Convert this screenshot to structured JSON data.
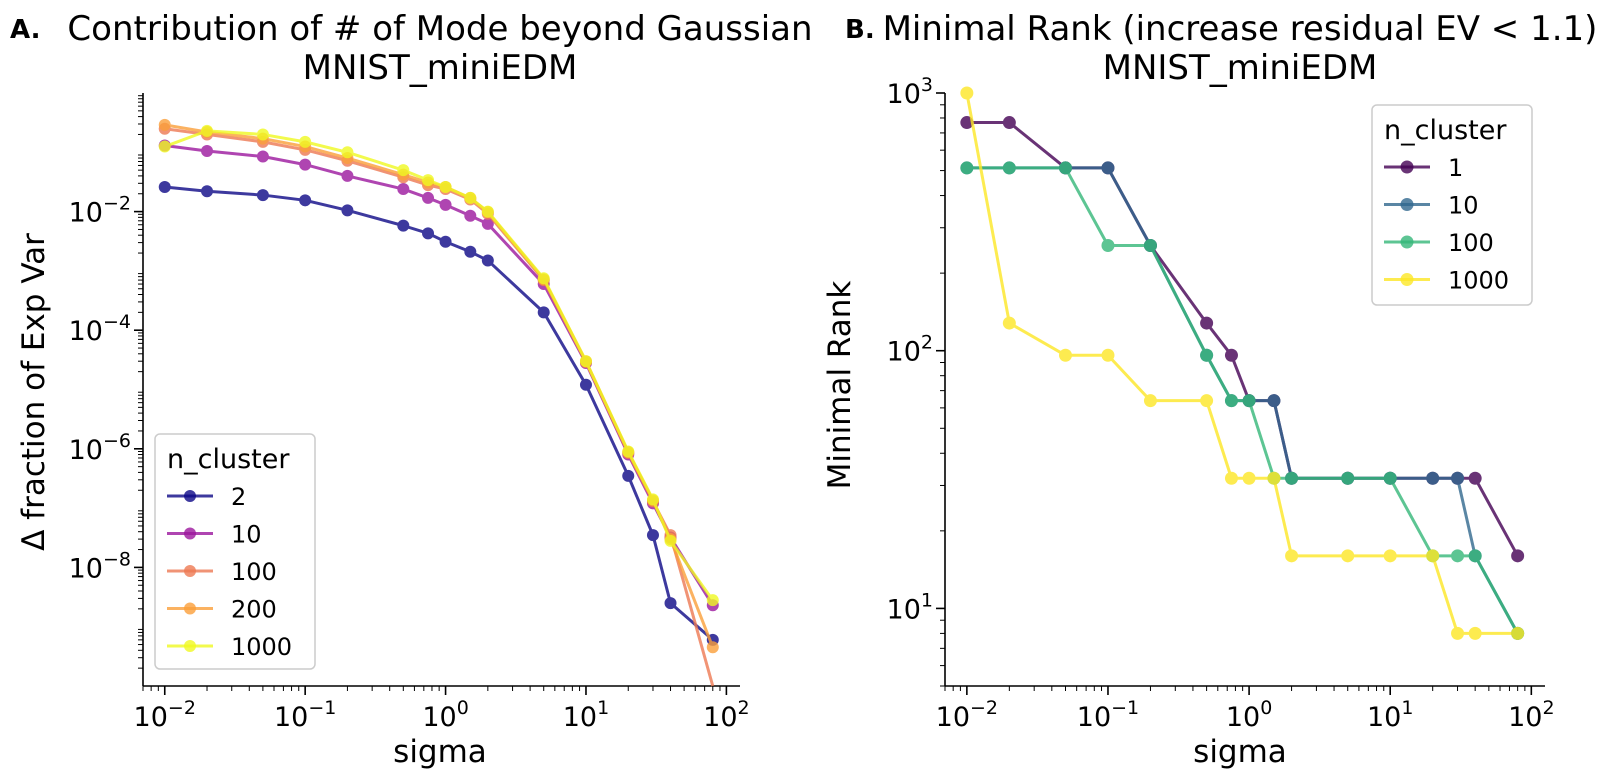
{
  "chart_data": [
    {
      "type": "line",
      "panel_label": "A.",
      "title": "Contribution of # of Mode beyond Gaussian",
      "subtitle": "MNIST_miniEDM",
      "xlabel": "sigma",
      "ylabel": "Δ fraction of Exp Var",
      "xscale": "log",
      "yscale": "log",
      "xlim": [
        0.007,
        125
      ],
      "ylim": [
        1e-10,
        1
      ],
      "xticks": [
        {
          "value": 0.01,
          "base": "10",
          "exp": "−2"
        },
        {
          "value": 0.1,
          "base": "10",
          "exp": "−1"
        },
        {
          "value": 1,
          "base": "10",
          "exp": "0"
        },
        {
          "value": 10,
          "base": "10",
          "exp": "1"
        },
        {
          "value": 100,
          "base": "10",
          "exp": "2"
        }
      ],
      "yticks": [
        {
          "value": 0.01,
          "base": "10",
          "exp": "−2"
        },
        {
          "value": 0.0001,
          "base": "10",
          "exp": "−4"
        },
        {
          "value": 1e-06,
          "base": "10",
          "exp": "−6"
        },
        {
          "value": 1e-08,
          "base": "10",
          "exp": "−8"
        }
      ],
      "legend_title": "n_cluster",
      "legend_position": "lower-left",
      "x": [
        0.01,
        0.02,
        0.05,
        0.1,
        0.2,
        0.5,
        0.75,
        1,
        1.5,
        2,
        5,
        10,
        20,
        30,
        40,
        80
      ],
      "series": [
        {
          "name": "2",
          "color": "#0d0887",
          "values": [
            0.026,
            0.022,
            0.019,
            0.0155,
            0.0105,
            0.0058,
            0.0043,
            0.0031,
            0.0021,
            0.0015,
            0.0002,
            1.2e-05,
            3.5e-07,
            3.5e-08,
            2.5e-09,
            6e-10
          ]
        },
        {
          "name": "10",
          "color": "#9c179e",
          "values": [
            0.13,
            0.105,
            0.085,
            0.062,
            0.04,
            0.024,
            0.017,
            0.013,
            0.0085,
            0.0062,
            0.0006,
            2.8e-05,
            8e-07,
            1.2e-07,
            3.2e-08,
            2.3e-09
          ]
        },
        {
          "name": "100",
          "color": "#ed7953",
          "values": [
            0.25,
            0.2,
            0.15,
            0.11,
            0.072,
            0.038,
            0.028,
            0.024,
            0.016,
            0.0092,
            0.0007,
            2.9e-05,
            8.5e-07,
            1.3e-07,
            3.5e-08,
            1e-10
          ]
        },
        {
          "name": "200",
          "color": "#fb9f3a",
          "values": [
            0.29,
            0.22,
            0.17,
            0.125,
            0.08,
            0.042,
            0.031,
            0.026,
            0.017,
            0.0098,
            0.00072,
            3e-05,
            8.8e-07,
            1.35e-07,
            3e-08,
            4.5e-10
          ]
        },
        {
          "name": "1000",
          "color": "#f0f921",
          "values": [
            0.125,
            0.23,
            0.2,
            0.15,
            0.1,
            0.05,
            0.034,
            0.026,
            0.017,
            0.01,
            0.00075,
            3e-05,
            9e-07,
            1.4e-07,
            2.8e-08,
            2.8e-09
          ]
        }
      ]
    },
    {
      "type": "line",
      "panel_label": "B.",
      "title": "Minimal Rank (increase residual EV < 1.1)",
      "subtitle": "MNIST_miniEDM",
      "xlabel": "sigma",
      "ylabel": "Minimal Rank",
      "xscale": "log",
      "yscale": "log",
      "xlim": [
        0.007,
        125
      ],
      "ylim": [
        5,
        1000
      ],
      "xticks": [
        {
          "value": 0.01,
          "base": "10",
          "exp": "−2"
        },
        {
          "value": 0.1,
          "base": "10",
          "exp": "−1"
        },
        {
          "value": 1,
          "base": "10",
          "exp": "0"
        },
        {
          "value": 10,
          "base": "10",
          "exp": "1"
        },
        {
          "value": 100,
          "base": "10",
          "exp": "2"
        }
      ],
      "yticks": [
        {
          "value": 10,
          "base": "10",
          "exp": "1"
        },
        {
          "value": 100,
          "base": "10",
          "exp": "2"
        },
        {
          "value": 1000,
          "base": "10",
          "exp": "3"
        }
      ],
      "legend_title": "n_cluster",
      "legend_position": "upper-right",
      "x": [
        0.01,
        0.02,
        0.05,
        0.1,
        0.2,
        0.5,
        0.75,
        1,
        1.5,
        2,
        5,
        10,
        20,
        30,
        40,
        80
      ],
      "series": [
        {
          "name": "1",
          "color": "#440154",
          "values": [
            768,
            768,
            512,
            512,
            256,
            128,
            96,
            64,
            64,
            32,
            32,
            32,
            32,
            32,
            32,
            16
          ]
        },
        {
          "name": "10",
          "color": "#31688e",
          "values": [
            512,
            512,
            512,
            512,
            256,
            96,
            64,
            64,
            64,
            32,
            32,
            32,
            32,
            32,
            16,
            8
          ]
        },
        {
          "name": "100",
          "color": "#35b779",
          "values": [
            512,
            512,
            512,
            256,
            256,
            96,
            64,
            64,
            32,
            32,
            32,
            32,
            16,
            16,
            16,
            8
          ]
        },
        {
          "name": "1000",
          "color": "#fde725",
          "values": [
            1000,
            128,
            96,
            96,
            64,
            64,
            32,
            32,
            32,
            16,
            16,
            16,
            16,
            8,
            8,
            8
          ]
        }
      ]
    }
  ]
}
